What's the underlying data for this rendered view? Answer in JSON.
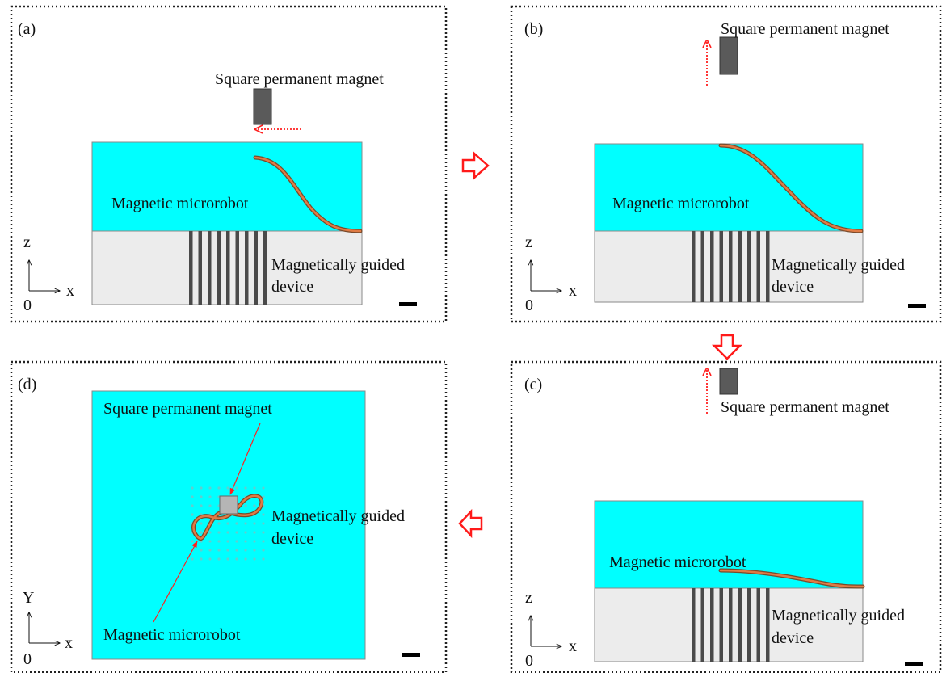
{
  "panels": [
    {
      "label": "(a)",
      "magnet_label": "Square permanent magnet",
      "robot_label": "Magnetic microrobot",
      "device_label": [
        "Magnetically guided",
        "device"
      ],
      "axes": {
        "vertical": "z",
        "horizontal": "x",
        "origin": "0"
      }
    },
    {
      "label": "(b)",
      "magnet_label": "Square permanent magnet",
      "robot_label": "Magnetic microrobot",
      "device_label": [
        "Magnetically guided",
        "device"
      ],
      "axes": {
        "vertical": "z",
        "horizontal": "x",
        "origin": "0"
      }
    },
    {
      "label": "(c)",
      "magnet_label": "Square permanent magnet",
      "robot_label": "Magnetic microrobot",
      "device_label": [
        "Magnetically guided",
        "device"
      ],
      "axes": {
        "vertical": "z",
        "horizontal": "x",
        "origin": "0"
      }
    },
    {
      "label": "(d)",
      "magnet_label": "Square permanent magnet",
      "robot_label": "Magnetic microrobot",
      "device_label": [
        "Magnetically guided",
        "device"
      ],
      "axes": {
        "vertical": "Y",
        "horizontal": "x",
        "origin": "0"
      }
    }
  ]
}
